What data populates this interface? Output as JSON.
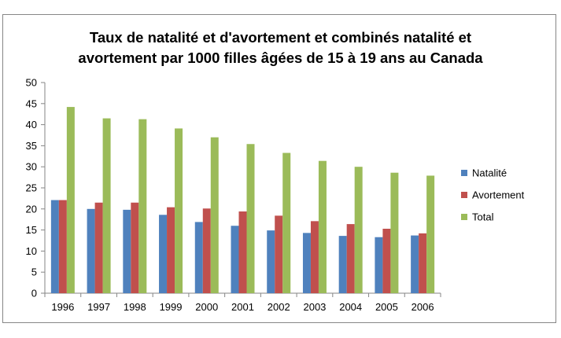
{
  "chart_data": {
    "type": "bar",
    "title": "Taux de natalité et d'avortement et combinés natalité et\navortement par 1000 filles âgées de 15 à 19 ans au Canada",
    "categories": [
      "1996",
      "1997",
      "1998",
      "1999",
      "2000",
      "2001",
      "2002",
      "2003",
      "2004",
      "2005",
      "2006"
    ],
    "series": [
      {
        "name": "Natalité",
        "color": "#4f81bd",
        "values": [
          22.1,
          20.0,
          19.8,
          18.6,
          16.9,
          16.0,
          14.9,
          14.3,
          13.6,
          13.3,
          13.7
        ]
      },
      {
        "name": "Avortement",
        "color": "#c0504d",
        "values": [
          22.1,
          21.5,
          21.5,
          20.4,
          20.1,
          19.4,
          18.4,
          17.1,
          16.4,
          15.3,
          14.2
        ]
      },
      {
        "name": "Total",
        "color": "#9bbb59",
        "values": [
          44.2,
          41.5,
          41.3,
          39.1,
          37.0,
          35.4,
          33.3,
          31.4,
          30.0,
          28.6,
          27.9
        ]
      }
    ],
    "ylim": [
      0,
      50
    ],
    "yticks": [
      0,
      5,
      10,
      15,
      20,
      25,
      30,
      35,
      40,
      45,
      50
    ],
    "grid": false,
    "legend_position": "right"
  }
}
